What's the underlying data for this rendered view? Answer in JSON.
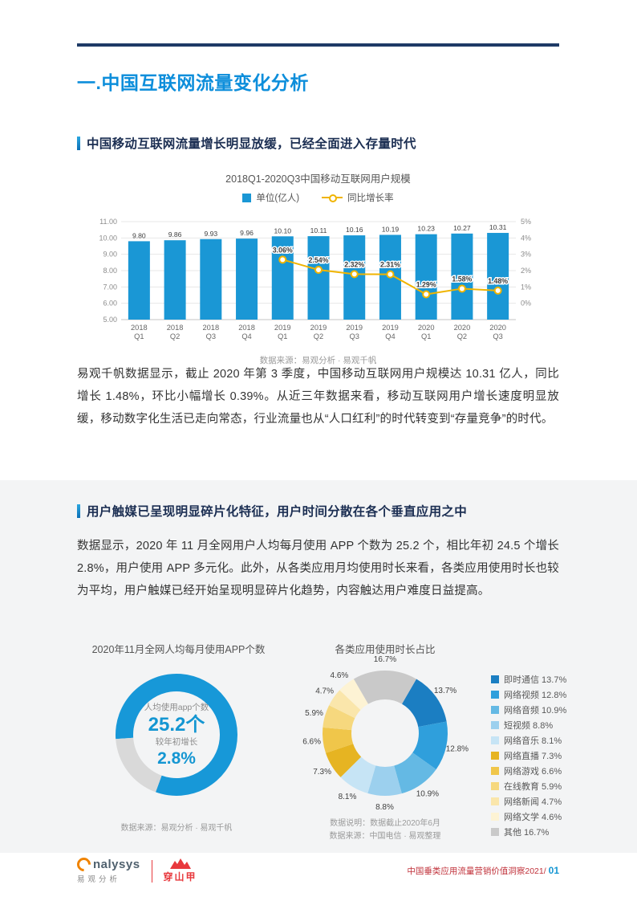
{
  "page": {
    "h1": "一.中国互联网流量变化分析"
  },
  "section1": {
    "heading": "中国移动互联网流量增长明显放缓，已经全面进入存量时代",
    "paragraph": "易观千帆数据显示，截止 2020 年第 3 季度，中国移动互联网用户规模达 10.31 亿人，同比增长 1.48%，环比小幅增长 0.39%。从近三年数据来看，移动互联网用户增长速度明显放缓，移动数字化生活已走向常态，行业流量也从“人口红利”的时代转变到“存量竞争”的时代。"
  },
  "section2": {
    "heading": "用户触媒已呈现明显碎片化特征，用户时间分散在各个垂直应用之中",
    "paragraph": "数据显示，2020 年 11 月全网用户人均每月使用 APP 个数为 25.2 个，相比年初 24.5 个增长 2.8%，用户使用 APP 多元化。此外，从各类应用月均使用时长来看，各类应用使用时长也较为平均，用户触媒已经开始呈现明显碎片化趋势，内容触达用户难度日益提高。"
  },
  "chart_data": [
    {
      "type": "bar",
      "title": "2018Q1-2020Q3中国移动互联网用户规模",
      "categories": [
        "2018 Q1",
        "2018 Q2",
        "2018 Q3",
        "2018 Q4",
        "2019 Q1",
        "2019 Q2",
        "2019 Q3",
        "2019 Q4",
        "2020 Q1",
        "2020 Q2",
        "2020 Q3"
      ],
      "series": [
        {
          "name": "单位(亿人)",
          "type": "bar",
          "color": "#1a97d5",
          "values": [
            9.8,
            9.86,
            9.93,
            9.96,
            10.1,
            10.11,
            10.16,
            10.19,
            10.23,
            10.27,
            10.31
          ]
        },
        {
          "name": "同比增长率",
          "type": "line",
          "color": "#f0b400",
          "values": [
            null,
            null,
            null,
            null,
            3.06,
            2.54,
            2.32,
            2.31,
            1.29,
            1.58,
            1.48
          ]
        }
      ],
      "y_left": {
        "min": 5,
        "max": 11,
        "ticks": [
          "11.00",
          "10.00",
          "9.00",
          "8.00",
          "7.00",
          "6.00",
          "5.00"
        ]
      },
      "y_right": {
        "min": 0,
        "max": 5,
        "ticks": [
          "5%",
          "4%",
          "3%",
          "2%",
          "1%",
          "0%"
        ]
      },
      "grid": true,
      "legend_position": "top",
      "source": "数据来源：易观分析 · 易观千帆"
    },
    {
      "type": "pie",
      "title": "2020年11月全网人均每月使用APP个数",
      "center_lines": [
        "人均使用app个数",
        "25.2个",
        "较年初增长",
        "2.8%"
      ],
      "ring": {
        "main_color": "#1798d8",
        "accent_color": "#d9d9d9",
        "accent_start_deg": 200,
        "accent_sweep_deg": 66
      },
      "source": "数据来源：易观分析 · 易观千帆"
    },
    {
      "type": "pie",
      "title": "各类应用使用时长占比",
      "start_angle_deg": 30,
      "slices": [
        {
          "label": "即时通信",
          "value": 13.7,
          "color": "#1b7ec2"
        },
        {
          "label": "网络视频",
          "value": 12.8,
          "color": "#2f9fdc"
        },
        {
          "label": "网络音频",
          "value": 10.9,
          "color": "#64b9e4"
        },
        {
          "label": "短视频",
          "value": 8.8,
          "color": "#9cd0ee"
        },
        {
          "label": "网络音乐",
          "value": 8.1,
          "color": "#c6e4f5"
        },
        {
          "label": "网络直播",
          "value": 7.3,
          "color": "#e6b422"
        },
        {
          "label": "网络游戏",
          "value": 6.6,
          "color": "#f0c64a"
        },
        {
          "label": "在线教育",
          "value": 5.9,
          "color": "#f6d87e"
        },
        {
          "label": "网络新闻",
          "value": 4.7,
          "color": "#fae6ab"
        },
        {
          "label": "网络文学",
          "value": 4.6,
          "color": "#fdf3d4"
        },
        {
          "label": "其他",
          "value": 16.7,
          "color": "#c9c9c9"
        }
      ],
      "notes": [
        "数据说明：数据截止2020年6月",
        "数据来源：中国电信 · 易观整理"
      ]
    }
  ],
  "footer": {
    "brand_main": "nalysys",
    "brand_sub": "易观分析",
    "partner": "穿山甲",
    "report_title": "中国垂类应用流量营销价值洞察2021/",
    "page_no": "01"
  }
}
